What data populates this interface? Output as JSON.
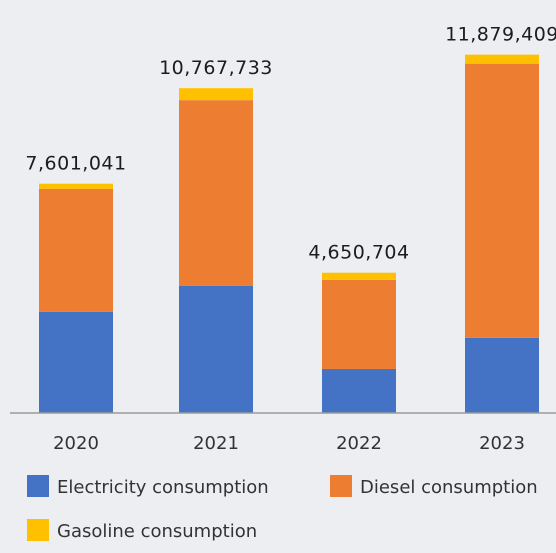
{
  "chart_data": {
    "type": "bar",
    "stacked": true,
    "categories": [
      "2020",
      "2021",
      "2022",
      "2023"
    ],
    "totals": [
      "7,601,041",
      "10,767,733",
      "4,650,704",
      "11,879,409"
    ],
    "series": [
      {
        "name": "Electricity consumption",
        "color": "#4472c4",
        "values": [
          3350000,
          4220000,
          1460000,
          2490000
        ]
      },
      {
        "name": "Diesel consumption",
        "color": "#ed7d31",
        "values": [
          4080000,
          6150000,
          2950000,
          9090000
        ]
      },
      {
        "name": "Gasoline consumption",
        "color": "#ffc000",
        "values": [
          171041,
          397733,
          240704,
          299409
        ]
      }
    ],
    "ylim": [
      0,
      12500000
    ],
    "grid": false,
    "legend_position": "bottom"
  }
}
